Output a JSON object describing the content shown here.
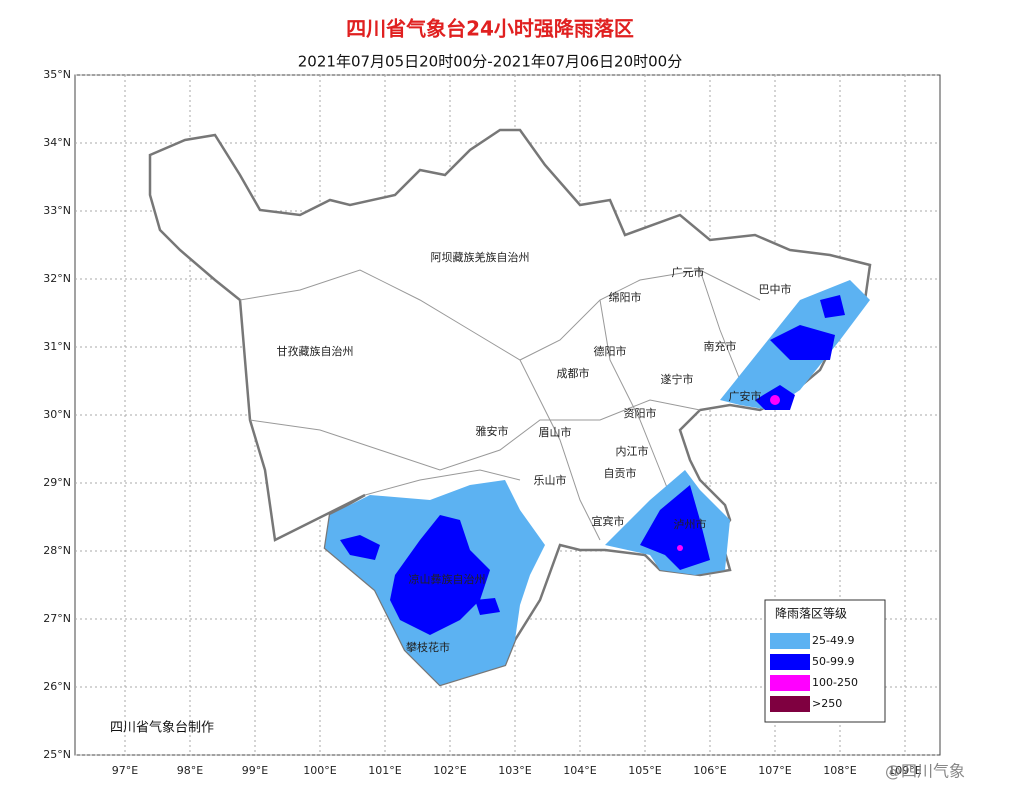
{
  "title": "四川省气象台24小时强降雨落区",
  "subtitle": "2021年07月05日20时00分-2021年07月06日20时00分",
  "lat_ticks": [
    {
      "value": 35,
      "label": "35°N"
    },
    {
      "value": 34,
      "label": "34°N"
    },
    {
      "value": 33,
      "label": "33°N"
    },
    {
      "value": 32,
      "label": "32°N"
    },
    {
      "value": 31,
      "label": "31°N"
    },
    {
      "value": 30,
      "label": "30°N"
    },
    {
      "value": 29,
      "label": "29°N"
    },
    {
      "value": 28,
      "label": "28°N"
    },
    {
      "value": 27,
      "label": "27°N"
    },
    {
      "value": 26,
      "label": "26°N"
    },
    {
      "value": 25,
      "label": "25°N"
    }
  ],
  "lon_ticks": [
    {
      "value": 97,
      "label": "97°E"
    },
    {
      "value": 98,
      "label": "98°E"
    },
    {
      "value": 99,
      "label": "99°E"
    },
    {
      "value": 100,
      "label": "100°E"
    },
    {
      "value": 101,
      "label": "101°E"
    },
    {
      "value": 102,
      "label": "102°E"
    },
    {
      "value": 103,
      "label": "103°E"
    },
    {
      "value": 104,
      "label": "104°E"
    },
    {
      "value": 105,
      "label": "105°E"
    },
    {
      "value": 106,
      "label": "106°E"
    },
    {
      "value": 107,
      "label": "107°E"
    },
    {
      "value": 108,
      "label": "108°E"
    },
    {
      "value": 109,
      "label": "109°E"
    }
  ],
  "cities": [
    "阿坝藏族羌族自治州",
    "甘孜藏族自治州",
    "广元市",
    "巴中市",
    "绵阳市",
    "德阳市",
    "南充市",
    "成都市",
    "遂宁市",
    "广安市",
    "资阳市",
    "雅安市",
    "眉山市",
    "内江市",
    "自贡市",
    "乐山市",
    "宜宾市",
    "泸州市",
    "凉山彝族自治州",
    "攀枝花市"
  ],
  "legend": {
    "title": "降雨落区等级",
    "items": [
      {
        "label": "25-49.9",
        "color": "#5cb2f2"
      },
      {
        "label": "50-99.9",
        "color": "#0000ff"
      },
      {
        "label": "100-250",
        "color": "#ff00ff"
      },
      {
        "label": ">250",
        "color": "#7f0040"
      }
    ]
  },
  "credit": "四川省气象台制作",
  "watermark": "@四川气象"
}
